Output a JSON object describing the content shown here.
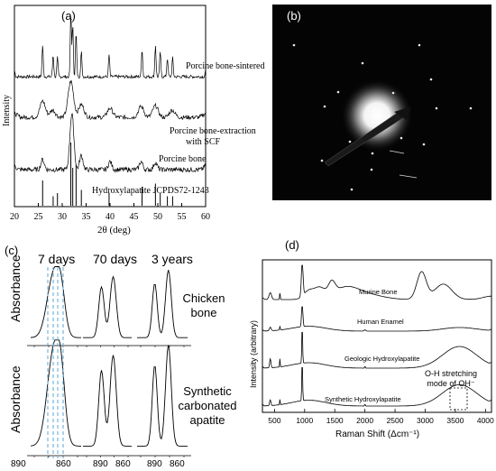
{
  "panel_a": {
    "label": "(a)",
    "ylabel": "Intensity",
    "xlabel": "2θ (deg)",
    "xlim": [
      20,
      60
    ],
    "ticks": [
      "20",
      "25",
      "30",
      "35",
      "40",
      "45",
      "50",
      "55",
      "60"
    ],
    "traces": [
      {
        "name": "Porcine bone-sintered"
      },
      {
        "name": "Porcine bone-extraction",
        "name2": "with SCF"
      },
      {
        "name": "Porcine bone"
      },
      {
        "name": "Hydroxylapatite  JCPDS72-1243"
      }
    ]
  },
  "panel_b": {
    "label": "(b)"
  },
  "panel_c": {
    "label": "(c)",
    "ylabel": "Absorbance",
    "columns": [
      "7 days",
      "70 days",
      "3 years"
    ],
    "rows": [
      {
        "name": "Chicken",
        "name2": "bone"
      },
      {
        "name": "Synthetic",
        "name2": "carbonated",
        "name3": "apatite"
      }
    ],
    "ticks": [
      "890",
      "860"
    ]
  },
  "panel_d": {
    "label": "(d)",
    "ylabel": "Intensity (arbitrary)",
    "xlabel": "Raman Shift (Δcm⁻¹)",
    "xlim": [
      300,
      4100
    ],
    "ticks": [
      "500",
      "1000",
      "1500",
      "2000",
      "2500",
      "3000",
      "3500",
      "4000"
    ],
    "traces": [
      {
        "name": "Murine Bone"
      },
      {
        "name": "Human Enamel"
      },
      {
        "name": "Geologic Hydroxylapatite"
      },
      {
        "name": "Synthetic Hydroxylapatite"
      }
    ],
    "annotation": {
      "line1": "O-H stretching",
      "line2": "mode of OH⁻"
    }
  },
  "chart_data": [
    {
      "type": "line",
      "panel": "a",
      "xlabel": "2θ (deg)",
      "ylabel": "Intensity",
      "xlim": [
        20,
        60
      ],
      "series": [
        {
          "name": "Porcine bone-sintered",
          "x": [
            20,
            25.9,
            28.1,
            29,
            31.8,
            32.2,
            32.9,
            34,
            39.8,
            46.7,
            49.5,
            50.5,
            52,
            53.1,
            60
          ],
          "y": [
            0.1,
            0.5,
            0.35,
            0.3,
            1.0,
            0.8,
            0.7,
            0.4,
            0.35,
            0.45,
            0.5,
            0.4,
            0.3,
            0.3,
            0.1
          ]
        },
        {
          "name": "Porcine bone-extraction with SCF",
          "x": [
            20,
            25.9,
            28,
            31.8,
            34,
            40,
            46.5,
            49.5,
            53,
            60
          ],
          "y": [
            0.1,
            0.45,
            0.2,
            1.0,
            0.35,
            0.25,
            0.3,
            0.32,
            0.2,
            0.1
          ]
        },
        {
          "name": "Porcine bone",
          "x": [
            20,
            25.9,
            31.8,
            32.2,
            34,
            40,
            46.5,
            49.5,
            60
          ],
          "y": [
            0.1,
            0.25,
            0.75,
            0.85,
            0.35,
            0.2,
            0.2,
            0.18,
            0.1
          ]
        },
        {
          "name": "Hydroxylapatite JCPDS72-1243",
          "x": [
            25.9,
            28.1,
            29,
            31.8,
            32.2,
            32.9,
            34,
            39.8,
            46.7,
            49.5,
            50.5,
            52,
            53.1
          ],
          "y": [
            0.4,
            0.15,
            0.2,
            1.0,
            0.6,
            0.65,
            0.25,
            0.2,
            0.3,
            0.35,
            0.2,
            0.15,
            0.15
          ]
        }
      ]
    },
    {
      "type": "line",
      "panel": "c",
      "ylabel": "Absorbance",
      "columns": [
        "7 days",
        "70 days",
        "3 years"
      ],
      "rows": [
        "Chicken bone",
        "Synthetic carbonated apatite"
      ]
    },
    {
      "type": "line",
      "panel": "d",
      "xlabel": "Raman Shift (Δcm⁻¹)",
      "ylabel": "Intensity (arbitrary)",
      "xlim": [
        300,
        4100
      ],
      "series": [
        {
          "name": "Murine Bone",
          "x": [
            300,
            430,
            590,
            960,
            1070,
            1250,
            1450,
            1670,
            2000,
            2940,
            3300,
            4100
          ],
          "y": [
            0.05,
            0.2,
            0.2,
            1.0,
            0.25,
            0.3,
            0.35,
            0.3,
            0.15,
            0.8,
            0.45,
            0.1
          ]
        },
        {
          "name": "Human Enamel",
          "x": [
            300,
            430,
            590,
            960,
            1070,
            2000,
            3570,
            4100
          ],
          "y": [
            0.05,
            0.15,
            0.15,
            1.0,
            0.2,
            0.05,
            0.15,
            0.05
          ]
        },
        {
          "name": "Geologic Hydroxylapatite",
          "x": [
            300,
            430,
            590,
            960,
            1070,
            2000,
            3570,
            4100
          ],
          "y": [
            0.05,
            0.25,
            0.25,
            1.0,
            0.15,
            0.05,
            0.6,
            0.05
          ]
        },
        {
          "name": "Synthetic Hydroxylapatite",
          "x": [
            300,
            430,
            590,
            960,
            1070,
            2000,
            3570,
            4100
          ],
          "y": [
            0.05,
            0.15,
            0.15,
            1.0,
            0.15,
            0.05,
            0.55,
            0.05
          ]
        }
      ]
    }
  ]
}
